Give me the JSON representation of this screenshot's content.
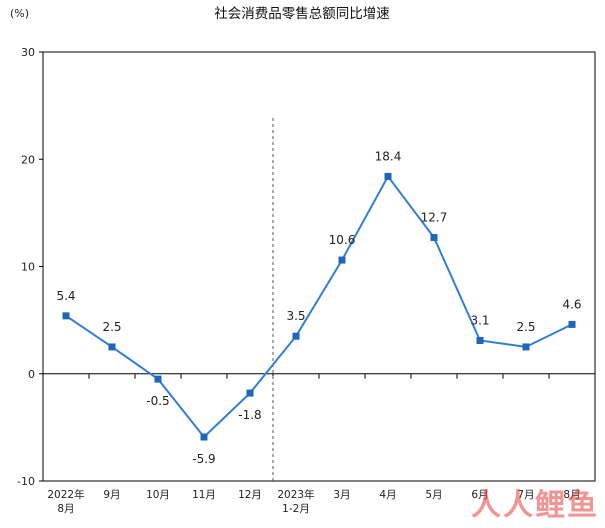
{
  "chart_data": {
    "type": "line",
    "title": "社会消费品零售总额同比增速",
    "unit": "(%)",
    "categories": [
      [
        "2022年",
        "8月"
      ],
      [
        "9月"
      ],
      [
        "10月"
      ],
      [
        "11月"
      ],
      [
        "12月"
      ],
      [
        "2023年",
        "1-2月"
      ],
      [
        "3月"
      ],
      [
        "4月"
      ],
      [
        "5月"
      ],
      [
        "6月"
      ],
      [
        "7月"
      ],
      [
        "8月"
      ]
    ],
    "values": [
      5.4,
      2.5,
      -0.5,
      -5.9,
      -1.8,
      3.5,
      10.6,
      18.4,
      12.7,
      3.1,
      2.5,
      4.6
    ],
    "data_labels": [
      "5.4",
      "2.5",
      "-0.5",
      "-5.9",
      "-1.8",
      "3.5",
      "10.6",
      "18.4",
      "12.7",
      "3.1",
      "2.5",
      "4.6"
    ],
    "ylim": [
      -10,
      30
    ],
    "yticks": [
      -10,
      0,
      10,
      20,
      30
    ],
    "divider_after_index": 4,
    "line_color": "#2f7fd3",
    "marker_color": "#1f66b8",
    "grid": false,
    "legend": "none"
  },
  "watermark": "人人鲤鱼"
}
